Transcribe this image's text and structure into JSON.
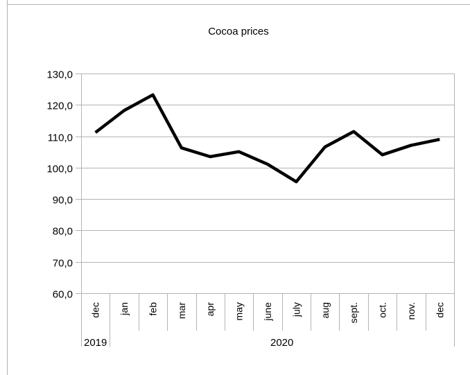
{
  "chart_data": {
    "type": "line",
    "title": "Cocoa prices",
    "xlabel": "",
    "ylabel": "",
    "categories": [
      "dec",
      "jan",
      "feb",
      "mar",
      "apr",
      "may",
      "june",
      "july",
      "aug",
      "sept.",
      "oct.",
      "nov.",
      "dec"
    ],
    "year_groups": [
      {
        "label": "2019",
        "count": 1
      },
      {
        "label": "2020",
        "count": 12
      }
    ],
    "series": [
      {
        "values": [
          111.2,
          118.2,
          123.2,
          106.3,
          103.5,
          105.1,
          101.1,
          95.5,
          106.6,
          111.5,
          104.1,
          107.1,
          109.0
        ],
        "color": "#000000"
      }
    ],
    "ylim": [
      60,
      130
    ],
    "yticks": [
      "60,0",
      "70,0",
      "80,0",
      "90,0",
      "100,0",
      "110,0",
      "120,0",
      "130,0"
    ],
    "grid": true,
    "legend": "none"
  }
}
